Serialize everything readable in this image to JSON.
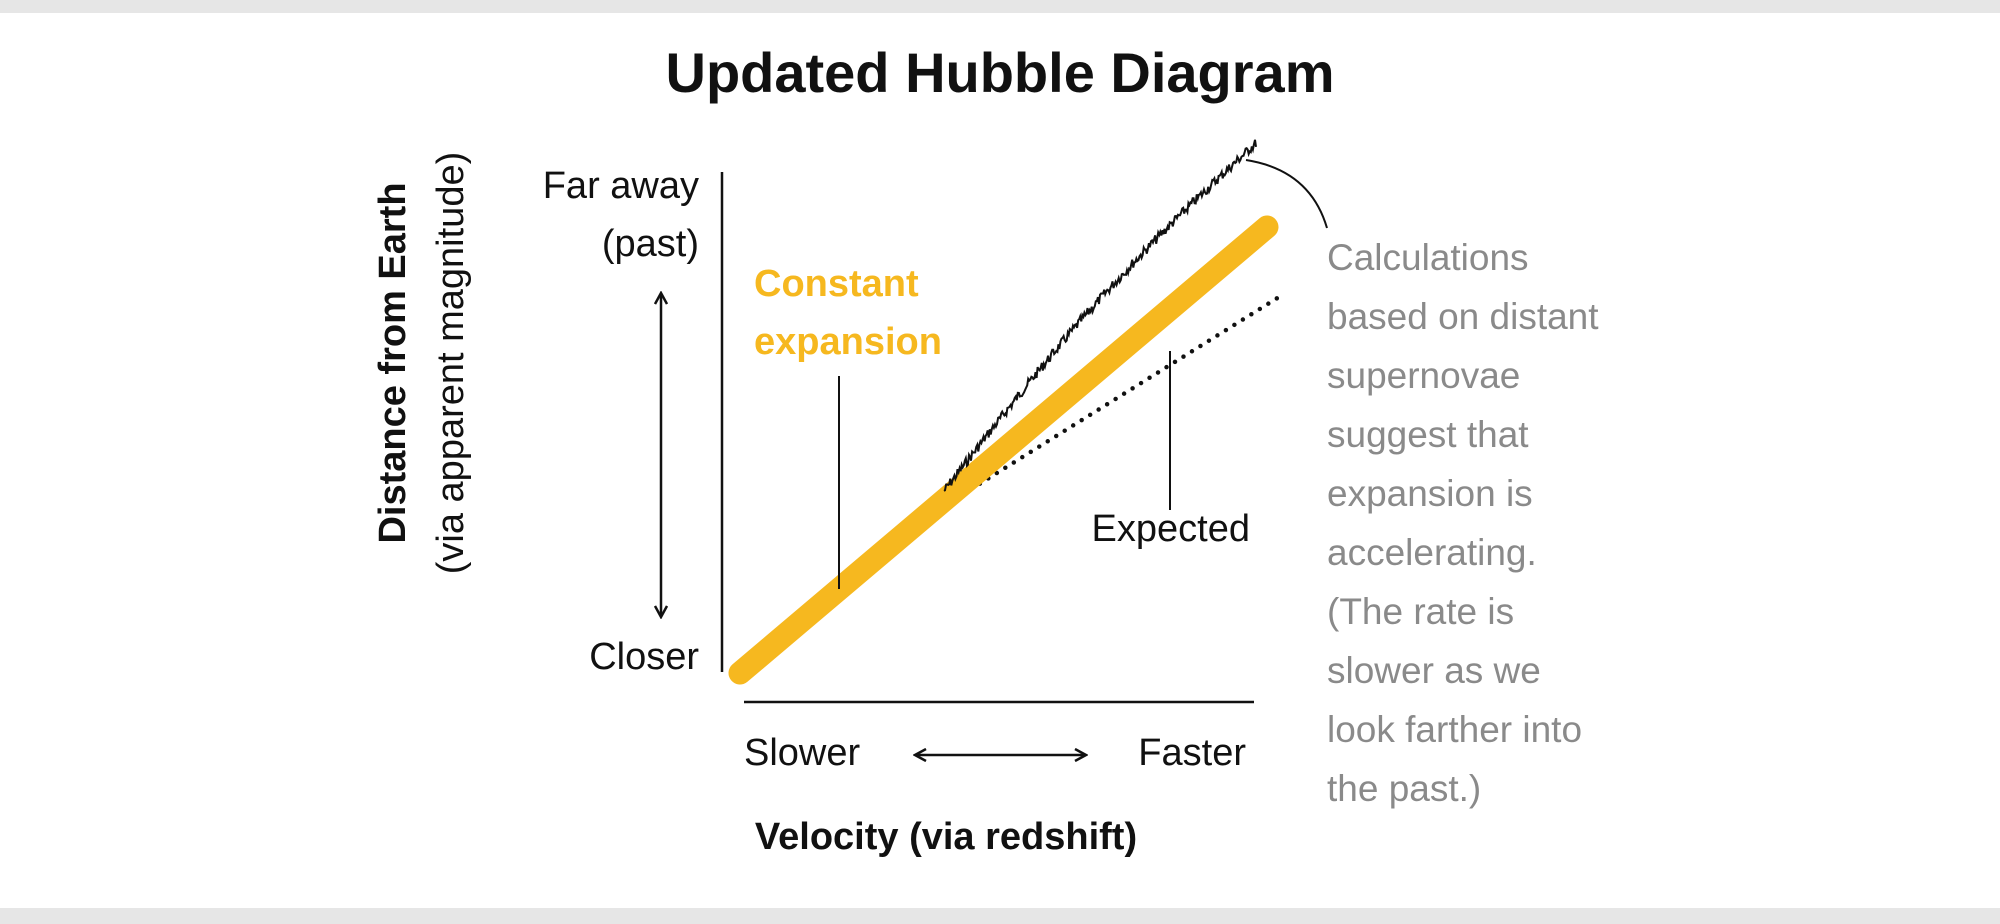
{
  "title": "Updated Hubble Diagram",
  "y_axis": {
    "label": [
      "Distance from Earth",
      "(via apparent magnitude)"
    ],
    "top": [
      "Far away",
      "(past)"
    ],
    "bottom": "Closer"
  },
  "x_axis": {
    "label": "Velocity (via redshift)",
    "left": "Slower",
    "right": "Faster"
  },
  "lines": {
    "constant": [
      "Constant",
      "expansion"
    ],
    "expected": "Expected"
  },
  "annotation": [
    "Calculations",
    "based on distant",
    "supernovae",
    "suggest that",
    "expansion is",
    "accelerating.",
    "(The rate is",
    "slower as we",
    "look farther into",
    "the past.)"
  ]
}
